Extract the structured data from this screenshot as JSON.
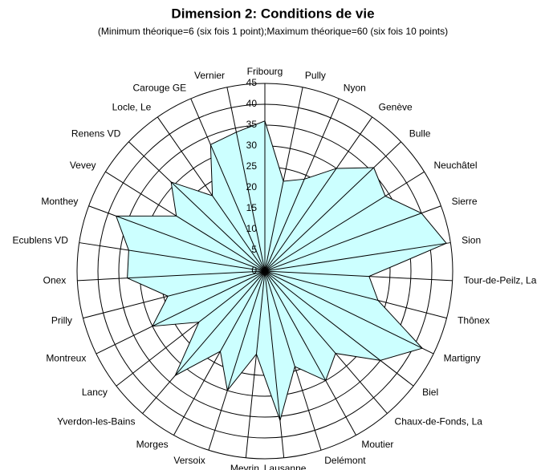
{
  "chart_data": {
    "type": "radar",
    "title": "Dimension 2: Conditions de vie",
    "subtitle": "(Minimum théorique=6 (six fois 1 point);Maximum théorique=60 (six fois 10 points)",
    "categories": [
      "Fribourg",
      "Pully",
      "Nyon",
      "Genève",
      "Bulle",
      "Neuchâtel",
      "Sierre",
      "Sion",
      "Tour-de-Peilz, La",
      "Thônex",
      "Martigny",
      "Biel",
      "Chaux-de-Fonds, La",
      "Moutier",
      "Delémont",
      "Lausanne",
      "Meyrin",
      "Versoix",
      "Morges",
      "Yverdon-les-Bains",
      "Lancy",
      "Montreux",
      "Prilly",
      "Onex",
      "Ecublens VD",
      "Monthey",
      "Vevey",
      "Renens VD",
      "Locle, Le",
      "Carouge GE",
      "Vernier"
    ],
    "values": [
      36,
      22,
      24,
      30,
      36,
      34,
      40,
      44,
      25,
      28,
      42,
      35,
      26,
      30,
      24,
      36,
      20,
      30,
      22,
      33,
      20,
      30,
      24,
      33,
      33,
      38,
      25,
      31,
      22,
      33,
      34
    ],
    "color": "#ccffff",
    "ylim": [
      0,
      45
    ],
    "yticks": [
      0,
      5,
      10,
      15,
      20,
      25,
      30,
      35,
      40,
      45
    ],
    "grid": true
  }
}
